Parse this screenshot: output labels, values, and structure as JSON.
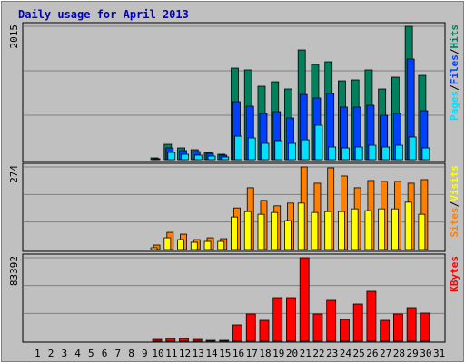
{
  "chart_data": [
    {
      "type": "bar",
      "title": "Daily usage for April 2013",
      "ylim": [
        0,
        2015
      ],
      "yticks": [
        2015
      ],
      "legend_separator": "/",
      "series": [
        {
          "name": "Pages",
          "color": "#00e0ff",
          "values": [
            0,
            0,
            0,
            0,
            0,
            0,
            0,
            0,
            0,
            0,
            110,
            82,
            69,
            55,
            41,
            356,
            329,
            247,
            288,
            247,
            301,
            521,
            192,
            178,
            192,
            219,
            192,
            219,
            343,
            178,
            0
          ]
        },
        {
          "name": "Files",
          "color": "#0040ff",
          "values": [
            0,
            0,
            0,
            0,
            0,
            0,
            0,
            0,
            0,
            14,
            178,
            137,
            123,
            96,
            69,
            877,
            808,
            699,
            726,
            630,
            986,
            932,
            1000,
            795,
            795,
            822,
            671,
            699,
            1521,
            740,
            0
          ]
        },
        {
          "name": "Hits",
          "color": "#00805c",
          "values": [
            0,
            0,
            0,
            0,
            0,
            0,
            0,
            0,
            0,
            27,
            233,
            178,
            151,
            110,
            82,
            1384,
            1357,
            1110,
            1178,
            1069,
            1658,
            1439,
            1480,
            1192,
            1206,
            1357,
            1069,
            1247,
            2015,
            1274,
            0
          ]
        }
      ]
    },
    {
      "type": "bar",
      "ylim": [
        0,
        274
      ],
      "yticks": [
        274
      ],
      "legend_separator": "/",
      "series": [
        {
          "name": "Sites",
          "color": "#ff8000",
          "values": [
            0,
            0,
            0,
            0,
            0,
            0,
            0,
            0,
            0,
            15,
            57,
            51,
            33,
            39,
            36,
            138,
            205,
            163,
            145,
            154,
            274,
            220,
            271,
            244,
            205,
            229,
            226,
            226,
            220,
            232,
            0
          ]
        },
        {
          "name": "Visits",
          "color": "#ffff00",
          "values": [
            0,
            0,
            0,
            0,
            0,
            0,
            0,
            0,
            0,
            6,
            39,
            33,
            24,
            27,
            27,
            108,
            126,
            117,
            123,
            96,
            154,
            123,
            126,
            126,
            135,
            129,
            135,
            135,
            157,
            117,
            0
          ]
        }
      ]
    },
    {
      "type": "bar",
      "ylim": [
        0,
        83392
      ],
      "yticks": [
        83392
      ],
      "categories": [
        "1",
        "2",
        "3",
        "4",
        "5",
        "6",
        "7",
        "8",
        "9",
        "10",
        "11",
        "12",
        "13",
        "14",
        "15",
        "16",
        "17",
        "18",
        "19",
        "20",
        "21",
        "22",
        "23",
        "24",
        "25",
        "26",
        "27",
        "28",
        "29",
        "30",
        "31"
      ],
      "category_colors": [
        "#000000",
        "#000000",
        "#000000",
        "#000000",
        "#000000",
        "#00805c",
        "#00805c",
        "#000000",
        "#000000",
        "#000000",
        "#000000",
        "#000000",
        "#00805c",
        "#00805c",
        "#000000",
        "#000000",
        "#000000",
        "#000000",
        "#000000",
        "#00805c",
        "#00805c",
        "#000000",
        "#000000",
        "#000000",
        "#000000",
        "#000000",
        "#00805c",
        "#00805c",
        "#000000",
        "#000000",
        "#000000"
      ],
      "series": [
        {
          "name": "KBytes",
          "color": "#ff0000",
          "values": [
            0,
            0,
            0,
            0,
            0,
            0,
            0,
            0,
            0,
            1812,
            2719,
            2719,
            1812,
            906,
            906,
            16316,
            27193,
            20842,
            43508,
            43508,
            83392,
            27193,
            40789,
            21754,
            37163,
            49853,
            20848,
            27193,
            33537,
            28099,
            0
          ]
        }
      ]
    }
  ]
}
